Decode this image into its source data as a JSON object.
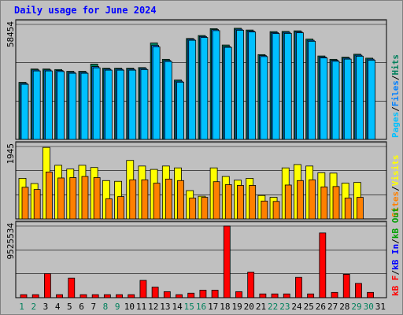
{
  "title": "Daily usage for June 2024",
  "colors": {
    "background": "#c0c0c0",
    "panel": "#c0c0c0",
    "hits": "#00805c",
    "files": "#0080ff",
    "pages": "#00c0ff",
    "visits": "#ffff00",
    "sites": "#ff8000",
    "kbin": "#0000ff",
    "kbout": "#00a000",
    "kbf": "#ff0000",
    "title": "#0000ff",
    "weekday_label": "#000000",
    "weekend_label": "#00805c"
  },
  "chart_data": [
    {
      "type": "bar",
      "panel": "hits-files-pages",
      "ymax_label": "58454",
      "ymax": 58454,
      "legend": [
        {
          "text": "Pages",
          "color": "#00c0ff"
        },
        {
          "text": "/",
          "color": "#000000"
        },
        {
          "text": "Files",
          "color": "#0080ff"
        },
        {
          "text": "/",
          "color": "#000000"
        },
        {
          "text": "Hits",
          "color": "#00805c"
        }
      ],
      "categories": [
        "1",
        "2",
        "3",
        "4",
        "5",
        "6",
        "7",
        "8",
        "9",
        "10",
        "11",
        "12",
        "13",
        "14",
        "15",
        "16",
        "17",
        "18",
        "19",
        "20",
        "21",
        "22",
        "23",
        "24",
        "25",
        "26",
        "27",
        "28",
        "29",
        "30",
        "31"
      ],
      "series": [
        {
          "name": "Hits",
          "values": [
            29000,
            35800,
            35800,
            35500,
            34600,
            34600,
            38300,
            36200,
            36200,
            36200,
            36500,
            49000,
            40700,
            30200,
            51300,
            52800,
            56300,
            48000,
            56500,
            55600,
            43100,
            54800,
            54900,
            55200,
            51000,
            42400,
            40700,
            41800,
            43300,
            41300,
            null
          ]
        },
        {
          "name": "Files",
          "values": [
            28500,
            35300,
            35300,
            35000,
            34100,
            34100,
            37000,
            35700,
            35700,
            35700,
            36000,
            47800,
            40100,
            29600,
            50900,
            52300,
            55800,
            47200,
            56000,
            55100,
            42600,
            54300,
            54400,
            54700,
            50400,
            41900,
            40200,
            41300,
            42800,
            40800,
            null
          ]
        },
        {
          "name": "Pages",
          "values": [
            28000,
            34800,
            34800,
            34500,
            33600,
            33600,
            36400,
            35200,
            35200,
            35200,
            35500,
            47000,
            39600,
            29100,
            50400,
            51800,
            55300,
            46800,
            55500,
            54600,
            42100,
            53800,
            53900,
            54200,
            49900,
            41400,
            39700,
            40800,
            42300,
            40300,
            null
          ]
        }
      ]
    },
    {
      "type": "bar",
      "panel": "visits-sites",
      "ymax_label": "1945",
      "ymax": 1945,
      "legend": [
        {
          "text": "Sites",
          "color": "#ff8000"
        },
        {
          "text": "/",
          "color": "#000000"
        },
        {
          "text": "Visits",
          "color": "#ffff00"
        }
      ],
      "categories": [
        "1",
        "2",
        "3",
        "4",
        "5",
        "6",
        "7",
        "8",
        "9",
        "10",
        "11",
        "12",
        "13",
        "14",
        "15",
        "16",
        "17",
        "18",
        "19",
        "20",
        "21",
        "22",
        "23",
        "24",
        "25",
        "26",
        "27",
        "28",
        "29",
        "30",
        "31"
      ],
      "series": [
        {
          "name": "Visits",
          "values": [
            1090,
            950,
            1920,
            1440,
            1340,
            1440,
            1380,
            1030,
            1010,
            1570,
            1420,
            1330,
            1420,
            1370,
            760,
            610,
            1370,
            1140,
            1040,
            1090,
            630,
            580,
            1370,
            1460,
            1420,
            1240,
            1230,
            960,
            980,
            null,
            null
          ]
        },
        {
          "name": "Sites",
          "values": [
            850,
            790,
            1260,
            1100,
            1110,
            1140,
            1110,
            540,
            600,
            1050,
            1050,
            960,
            1070,
            1030,
            560,
            580,
            1000,
            920,
            900,
            900,
            480,
            470,
            910,
            1030,
            1050,
            860,
            870,
            560,
            580,
            null,
            null
          ]
        }
      ]
    },
    {
      "type": "bar",
      "panel": "kbf-kbin-kbout",
      "ymax_label": "9525534",
      "ymax": 9525534,
      "legend": [
        {
          "text": "kB F",
          "color": "#ff0000"
        },
        {
          "text": "/",
          "color": "#000000"
        },
        {
          "text": "kB In",
          "color": "#0000ff"
        },
        {
          "text": "/",
          "color": "#000000"
        },
        {
          "text": "kB Out",
          "color": "#00a000"
        }
      ],
      "categories": [
        "1",
        "2",
        "3",
        "4",
        "5",
        "6",
        "7",
        "8",
        "9",
        "10",
        "11",
        "12",
        "13",
        "14",
        "15",
        "16",
        "17",
        "18",
        "19",
        "20",
        "21",
        "22",
        "23",
        "24",
        "25",
        "26",
        "27",
        "28",
        "29",
        "30",
        "31"
      ],
      "series": [
        {
          "name": "kB F",
          "values": [
            400000,
            400000,
            3200000,
            400000,
            2600000,
            400000,
            400000,
            400000,
            400000,
            400000,
            2300000,
            1400000,
            800000,
            400000,
            600000,
            1000000,
            1000000,
            9525534,
            800000,
            3400000,
            500000,
            500000,
            500000,
            2700000,
            500000,
            8600000,
            700000,
            3100000,
            1900000,
            700000,
            null
          ]
        }
      ]
    }
  ],
  "day_labels": [
    "1",
    "2",
    "3",
    "4",
    "5",
    "6",
    "7",
    "8",
    "9",
    "10",
    "11",
    "12",
    "13",
    "14",
    "15",
    "16",
    "17",
    "18",
    "19",
    "20",
    "21",
    "22",
    "23",
    "24",
    "25",
    "26",
    "27",
    "28",
    "29",
    "30",
    "31"
  ],
  "weekend_days": [
    "1",
    "2",
    "8",
    "9",
    "15",
    "16",
    "22",
    "23",
    "29",
    "30"
  ]
}
